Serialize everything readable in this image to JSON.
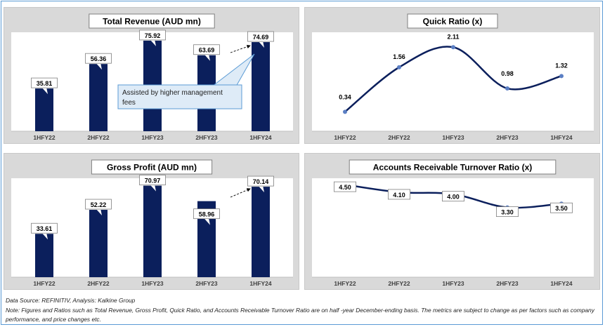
{
  "footer": {
    "source": "Data Source: REFINITIV, Analysis: Kalkine Group",
    "note": "Note: Figures and Ratios such as Total Revenue, Gross Profit, Quick Ratio, and Accounts Receivable Turnover Ratio are on half -year December-ending basis. The metrics are subject to change as per factors such as company performance, and price changes etc."
  },
  "colors": {
    "bar": "#0b1f5c",
    "line": "#0b1f5c",
    "marker": "#5b7fc4",
    "panel_bg": "#d9d9d9",
    "plot_bg": "#ffffff",
    "callout_bg": "#deebf7",
    "callout_border": "#5b9bd5"
  },
  "chart_data": [
    {
      "id": "rev",
      "type": "bar",
      "title": "Total Revenue (AUD mn)",
      "categories": [
        "1HFY22",
        "2HFY22",
        "1HFY23",
        "2HFY23",
        "1HFY24"
      ],
      "values": [
        35.81,
        56.36,
        75.92,
        63.69,
        74.69
      ],
      "labels": [
        "35.81",
        "56.36",
        "75.92",
        "63.69",
        "74.69"
      ],
      "ylim": [
        0,
        80
      ],
      "grid": false,
      "annotation": "Assisted by higher management fees"
    },
    {
      "id": "qr",
      "type": "line",
      "title": "Quick Ratio (x)",
      "categories": [
        "1HFY22",
        "2HFY22",
        "1HFY23",
        "2HFY23",
        "1HFY24"
      ],
      "values": [
        0.34,
        1.56,
        2.11,
        0.98,
        1.32
      ],
      "labels": [
        "0.34",
        "1.56",
        "2.11",
        "0.98",
        "1.32"
      ],
      "ylim": [
        0,
        2.5
      ],
      "grid": false
    },
    {
      "id": "gp",
      "type": "bar",
      "title": "Gross Profit (AUD mn)",
      "categories": [
        "1HFY22",
        "2HFY22",
        "1HFY23",
        "2HFY23",
        "1HFY24"
      ],
      "values": [
        33.61,
        52.22,
        70.97,
        58.96,
        70.14
      ],
      "labels": [
        "33.61",
        "52.22",
        "70.97",
        "58.96",
        "70.14"
      ],
      "ylim": [
        0,
        74
      ],
      "grid": false
    },
    {
      "id": "ar",
      "type": "line",
      "title": "Accounts Receivable Turnover Ratio (x)",
      "categories": [
        "1HFY22",
        "2HFY22",
        "1HFY23",
        "2HFY23",
        "1HFY24"
      ],
      "values": [
        4.5,
        4.1,
        4.0,
        3.3,
        3.5
      ],
      "labels": [
        "4.50",
        "4.10",
        "4.00",
        "3.30",
        "3.50"
      ],
      "ylim": [
        0,
        4.8
      ],
      "grid": false
    }
  ]
}
